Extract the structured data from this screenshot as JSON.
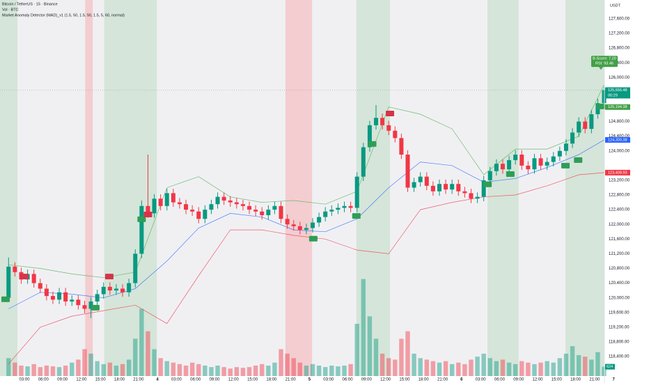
{
  "chart_data": {
    "type": "candlestick",
    "title": "Bitcoin / TetherUS · 15 · Binance",
    "subtitle": "Vol · BTC",
    "indicator": "Market Anomaly Detector (MAD)_v1 (1.5, 50, 1.5, 50, 1.5, 5, 60, normal)",
    "y_unit": "USDT",
    "up_color": "#089981",
    "down_color": "#f23645",
    "xlim": [
      -0.85,
      94.55
    ],
    "ylim": [
      117870,
      128110
    ],
    "vlim": [
      0,
      7000
    ],
    "grid": false,
    "xticks": [
      {
        "value": 3,
        "label": "03:00"
      },
      {
        "value": 6,
        "label": "06:00"
      },
      {
        "value": 9,
        "label": "09:00"
      },
      {
        "value": 12,
        "label": "12:00"
      },
      {
        "value": 15,
        "label": "15:00"
      },
      {
        "value": 18,
        "label": "18:00"
      },
      {
        "value": 21,
        "label": "21:00"
      },
      {
        "value": 24,
        "label": "4"
      },
      {
        "value": 27,
        "label": "03:00"
      },
      {
        "value": 30,
        "label": "06:00"
      },
      {
        "value": 33,
        "label": "09:00"
      },
      {
        "value": 36,
        "label": "12:00"
      },
      {
        "value": 39,
        "label": "15:00"
      },
      {
        "value": 42,
        "label": "18:00"
      },
      {
        "value": 45,
        "label": "21:00"
      },
      {
        "value": 48,
        "label": "5"
      },
      {
        "value": 51,
        "label": "03:00"
      },
      {
        "value": 54,
        "label": "06:00"
      },
      {
        "value": 57,
        "label": "09:00"
      },
      {
        "value": 60,
        "label": "12:00"
      },
      {
        "value": 63,
        "label": "15:00"
      },
      {
        "value": 66,
        "label": "18:00"
      },
      {
        "value": 69,
        "label": "21:00"
      },
      {
        "value": 72,
        "label": "6"
      },
      {
        "value": 75,
        "label": "03:00"
      },
      {
        "value": 78,
        "label": "06:00"
      },
      {
        "value": 81,
        "label": "09:00"
      },
      {
        "value": 84,
        "label": "12:00"
      },
      {
        "value": 87,
        "label": "15:00"
      },
      {
        "value": 90,
        "label": "18:00"
      },
      {
        "value": 93,
        "label": "21:00"
      },
      {
        "value": 96,
        "label": "7"
      }
    ],
    "yticks": [
      {
        "value": 127600,
        "label": "127,600.00"
      },
      {
        "value": 127200,
        "label": "127,200.00"
      },
      {
        "value": 126800,
        "label": "126,800.00"
      },
      {
        "value": 126400,
        "label": "126,400.00"
      },
      {
        "value": 126000,
        "label": "126,000.00"
      },
      {
        "value": 124800,
        "label": "124,800.00"
      },
      {
        "value": 124400,
        "label": "124,400.00"
      },
      {
        "value": 124000,
        "label": "124,000.00"
      },
      {
        "value": 123200,
        "label": "123,200.00"
      },
      {
        "value": 122800,
        "label": "122,800.00"
      },
      {
        "value": 122400,
        "label": "122,400.00"
      },
      {
        "value": 122000,
        "label": "122,000.00"
      },
      {
        "value": 121600,
        "label": "121,600.00"
      },
      {
        "value": 121200,
        "label": "121,200.00"
      },
      {
        "value": 120800,
        "label": "120,800.00"
      },
      {
        "value": 120400,
        "label": "120,400.00"
      },
      {
        "value": 120000,
        "label": "120,000.00"
      },
      {
        "value": 119600,
        "label": "119,600.00"
      },
      {
        "value": 119200,
        "label": "119,200.00"
      },
      {
        "value": 118800,
        "label": "118,800.00"
      },
      {
        "value": 118400,
        "label": "118,400.00"
      }
    ],
    "open": [
      120000,
      120850,
      120700,
      120500,
      120650,
      120400,
      120250,
      120050,
      119950,
      120150,
      119900,
      119950,
      119800,
      119700,
      119900,
      120100,
      120300,
      120200,
      120250,
      120150,
      120400,
      121200,
      122500,
      122300,
      122700,
      122500,
      122850,
      122600,
      122550,
      122400,
      122350,
      122150,
      122400,
      122550,
      122750,
      122650,
      122600,
      122550,
      122500,
      122400,
      122350,
      122250,
      122400,
      122500,
      122150,
      122000,
      121950,
      121850,
      121900,
      122050,
      122200,
      122350,
      122400,
      122450,
      122500,
      122450,
      123300,
      124100,
      124700,
      124900,
      124700,
      124550,
      124350,
      123900,
      123000,
      123150,
      123300,
      123050,
      122900,
      123100,
      122950,
      123100,
      122900,
      122850,
      122700,
      122750,
      123200,
      123450,
      123650,
      123500,
      123750,
      123900,
      123600,
      123500,
      123800,
      123600,
      123700,
      123850,
      124000,
      124200,
      124500,
      124800,
      124600,
      125000,
      125300
    ],
    "high": [
      121100,
      120970,
      120820,
      120770,
      120770,
      120520,
      120370,
      120170,
      120270,
      120270,
      120070,
      120070,
      119920,
      120020,
      120220,
      120420,
      120420,
      120370,
      120370,
      120520,
      121320,
      122650,
      123900,
      122820,
      122820,
      122970,
      122970,
      122720,
      122670,
      122520,
      122470,
      122520,
      122670,
      122870,
      122870,
      122770,
      122720,
      122670,
      122620,
      122520,
      122470,
      122520,
      122620,
      122620,
      122270,
      122120,
      122070,
      122020,
      122170,
      122320,
      122470,
      122520,
      122570,
      122620,
      122620,
      123420,
      124220,
      124820,
      125250,
      125020,
      124820,
      124670,
      124470,
      124020,
      123270,
      123420,
      123420,
      123170,
      123220,
      123220,
      123220,
      123220,
      123020,
      122970,
      122870,
      123320,
      123570,
      123770,
      123770,
      123870,
      124020,
      124020,
      123720,
      123920,
      123920,
      123820,
      123970,
      124120,
      124320,
      124620,
      124920,
      124920,
      125120,
      125420,
      125750
    ],
    "low": [
      119900,
      120580,
      120380,
      120380,
      120280,
      120130,
      119930,
      119830,
      119830,
      119780,
      119780,
      119680,
      119580,
      119450,
      119780,
      119980,
      120080,
      120080,
      120030,
      120030,
      120280,
      121080,
      122180,
      122180,
      122380,
      122380,
      122480,
      122430,
      122280,
      122230,
      122030,
      122030,
      122280,
      122430,
      122530,
      122480,
      122430,
      122380,
      122280,
      122230,
      122130,
      122130,
      122280,
      122030,
      121880,
      121830,
      121730,
      121730,
      121780,
      121930,
      122080,
      122230,
      122280,
      122330,
      122330,
      122330,
      123180,
      123980,
      124580,
      124580,
      124430,
      124230,
      123780,
      122880,
      122880,
      123030,
      122930,
      122780,
      122780,
      122830,
      122830,
      122780,
      122730,
      122580,
      122580,
      122630,
      123080,
      123330,
      123380,
      123380,
      123630,
      123480,
      123380,
      123380,
      123480,
      123480,
      123580,
      123730,
      123880,
      124080,
      124380,
      124480,
      124480,
      124880,
      125180
    ],
    "close": [
      120850,
      120700,
      120500,
      120650,
      120400,
      120250,
      120050,
      119950,
      120150,
      119900,
      119950,
      119800,
      119700,
      119900,
      120100,
      120300,
      120200,
      120250,
      120150,
      120400,
      121200,
      122500,
      122300,
      122700,
      122500,
      122850,
      122600,
      122550,
      122400,
      122350,
      122150,
      122400,
      122550,
      122750,
      122650,
      122600,
      122550,
      122500,
      122400,
      122350,
      122250,
      122400,
      122500,
      122150,
      122000,
      121950,
      121850,
      121900,
      122050,
      122200,
      122350,
      122400,
      122450,
      122500,
      122450,
      123300,
      124100,
      124700,
      124900,
      124700,
      124550,
      124350,
      123900,
      123000,
      123150,
      123300,
      123050,
      122900,
      123100,
      122950,
      123100,
      122900,
      122850,
      122700,
      122750,
      123200,
      123450,
      123650,
      123500,
      123750,
      123900,
      123600,
      123500,
      123800,
      123600,
      123700,
      123850,
      124000,
      124200,
      124500,
      124800,
      124600,
      125000,
      125300,
      125656.48
    ],
    "volume": [
      1200,
      900,
      700,
      650,
      800,
      600,
      700,
      650,
      600,
      700,
      900,
      1100,
      1800,
      1500,
      1000,
      800,
      900,
      700,
      800,
      1100,
      2500,
      4500,
      3000,
      1800,
      1200,
      1000,
      900,
      800,
      700,
      900,
      800,
      700,
      600,
      700,
      600,
      500,
      600,
      550,
      600,
      700,
      800,
      700,
      900,
      1800,
      1500,
      1200,
      900,
      700,
      800,
      700,
      600,
      700,
      650,
      700,
      800,
      3500,
      6500,
      4000,
      2500,
      1500,
      1200,
      1100,
      2500,
      3000,
      1500,
      1200,
      1100,
      1000,
      900,
      1000,
      800,
      900,
      800,
      1100,
      1300,
      1500,
      1200,
      1000,
      1100,
      900,
      800,
      1000,
      900,
      800,
      900,
      1000,
      900,
      1200,
      1500,
      2000,
      1400,
      1300,
      1100,
      1600,
      624
    ],
    "bands": [
      {
        "color": "#4caf50",
        "x": [
          0.5,
          5.5,
          10.5,
          15.5,
          20.5,
          25.5,
          30.5,
          35.5,
          40.5,
          45.5,
          50.5,
          55.5,
          60.5,
          65.5,
          70.5,
          75.5,
          80.5,
          85.5,
          90.5,
          94.5
        ],
        "values": [
          120900,
          120800,
          120650,
          120550,
          120700,
          123000,
          123300,
          122750,
          122600,
          122650,
          122550,
          122900,
          125200,
          125000,
          124600,
          123350,
          124050,
          124050,
          124400,
          125800
        ]
      },
      {
        "color": "#2962ff",
        "x": [
          0.5,
          5.5,
          10.5,
          15.5,
          20.5,
          25.5,
          30.5,
          35.5,
          40.5,
          45.5,
          50.5,
          55.5,
          60.5,
          65.5,
          70.5,
          75.5,
          80.5,
          85.5,
          90.5,
          94.5
        ],
        "values": [
          119700,
          120150,
          120100,
          120000,
          120250,
          121000,
          121900,
          122300,
          122200,
          121850,
          121800,
          122150,
          123000,
          123700,
          123600,
          123150,
          123250,
          123550,
          123900,
          124300.38
        ]
      },
      {
        "color": "#f23645",
        "x": [
          0.5,
          5.5,
          10.5,
          15.5,
          20.5,
          25.5,
          30.5,
          35.5,
          40.5,
          45.5,
          50.5,
          55.5,
          60.5,
          65.5,
          70.5,
          75.5,
          80.5,
          85.5,
          90.5,
          94.5
        ],
        "values": [
          118200,
          119200,
          119500,
          119650,
          119800,
          119300,
          120600,
          121850,
          121850,
          121700,
          121600,
          121300,
          121200,
          122400,
          122600,
          122750,
          122800,
          123050,
          123350,
          123408.93
        ]
      }
    ],
    "zones": [
      {
        "start": -0.85,
        "end": 1.9,
        "color": "rgba(76,175,80,0.16)"
      },
      {
        "start": 12.6,
        "end": 13.8,
        "color": "rgba(255,82,82,0.22)"
      },
      {
        "start": 15.6,
        "end": 23.9,
        "color": "rgba(76,175,80,0.16)"
      },
      {
        "start": 44.2,
        "end": 48.4,
        "color": "rgba(255,82,82,0.22)"
      },
      {
        "start": 55.4,
        "end": 60.7,
        "color": "rgba(76,175,80,0.16)"
      },
      {
        "start": 76.1,
        "end": 81.0,
        "color": "rgba(76,175,80,0.16)"
      },
      {
        "start": 88.4,
        "end": 94.55,
        "color": "rgba(76,175,80,0.16)"
      }
    ],
    "signals": [
      {
        "x": 0.03,
        "y": 119960,
        "color": "#2e9e55"
      },
      {
        "x": 14.2,
        "y": 119730,
        "color": "#2e9e55"
      },
      {
        "x": 21.5,
        "y": 122140,
        "color": "#2e9e55"
      },
      {
        "x": 48.6,
        "y": 121610,
        "color": "#2e9e55"
      },
      {
        "x": 55.4,
        "y": 122230,
        "color": "#2e9e55"
      },
      {
        "x": 57.9,
        "y": 124190,
        "color": "#2e9e55"
      },
      {
        "x": 76.1,
        "y": 123090,
        "color": "#2e9e55"
      },
      {
        "x": 79.7,
        "y": 123370,
        "color": "#2e9e55"
      },
      {
        "x": 88.4,
        "y": 123600,
        "color": "#2e9e55"
      },
      {
        "x": 90.4,
        "y": 123750,
        "color": "#2e9e55"
      },
      {
        "x": 94.0,
        "y": 125210,
        "color": "#2e9e55"
      },
      {
        "x": 3.0,
        "y": 120580,
        "color": "#d6334a"
      },
      {
        "x": 16.4,
        "y": 120580,
        "color": "#d6334a"
      },
      {
        "x": 22.5,
        "y": 122270,
        "color": "#d6334a"
      },
      {
        "x": 60.7,
        "y": 125020,
        "color": "#d6334a"
      }
    ],
    "price_labels": [
      {
        "value": 125656.48,
        "label": "125,656.48",
        "color": "#089981"
      },
      {
        "value": 125194.38,
        "label": "125,194.38",
        "color": "#43a047"
      },
      {
        "value": 124300.38,
        "label": "124,300.38",
        "color": "#2962ff"
      },
      {
        "value": 123408.93,
        "label": "123,408.93",
        "color": "#f23645"
      }
    ],
    "countdown": "00:29",
    "annotation": {
      "x": 94.0,
      "y": 126250,
      "lines": [
        "B-Score: 7.20",
        "RSI: 93.46"
      ],
      "color": "#43a047"
    }
  }
}
